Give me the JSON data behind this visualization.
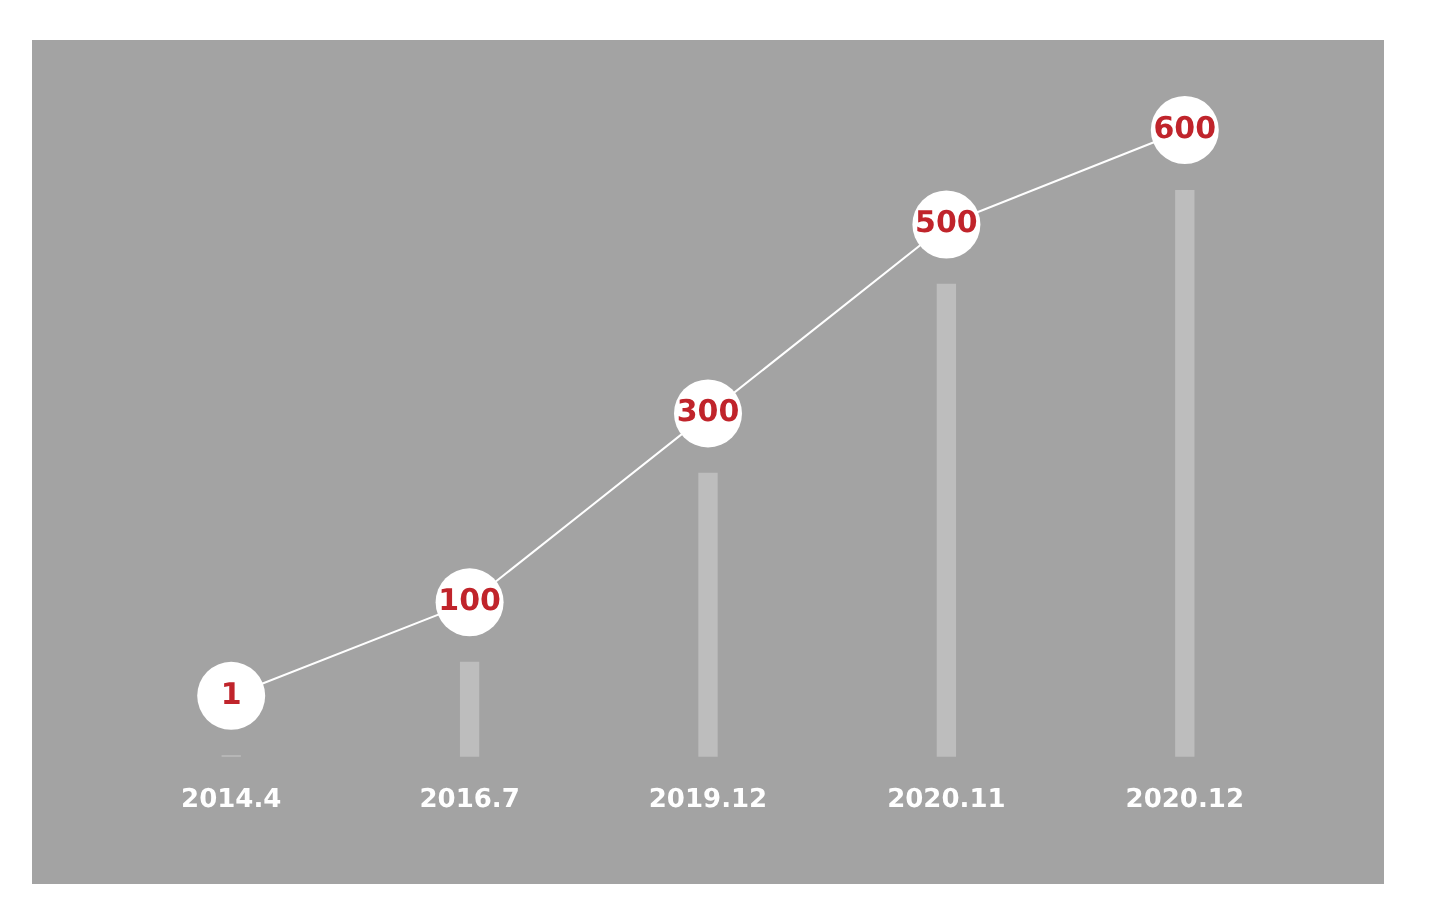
{
  "chart_data": {
    "type": "bar",
    "categories": [
      "2014.4",
      "2016.7",
      "2019.12",
      "2020.11",
      "2020.12"
    ],
    "series": [
      {
        "color": "#bdbdbd",
        "values": [
          1,
          100,
          300,
          500,
          600
        ]
      }
    ],
    "data_labels": true,
    "grid": false,
    "legend": false,
    "tick_labels": "x"
  }
}
